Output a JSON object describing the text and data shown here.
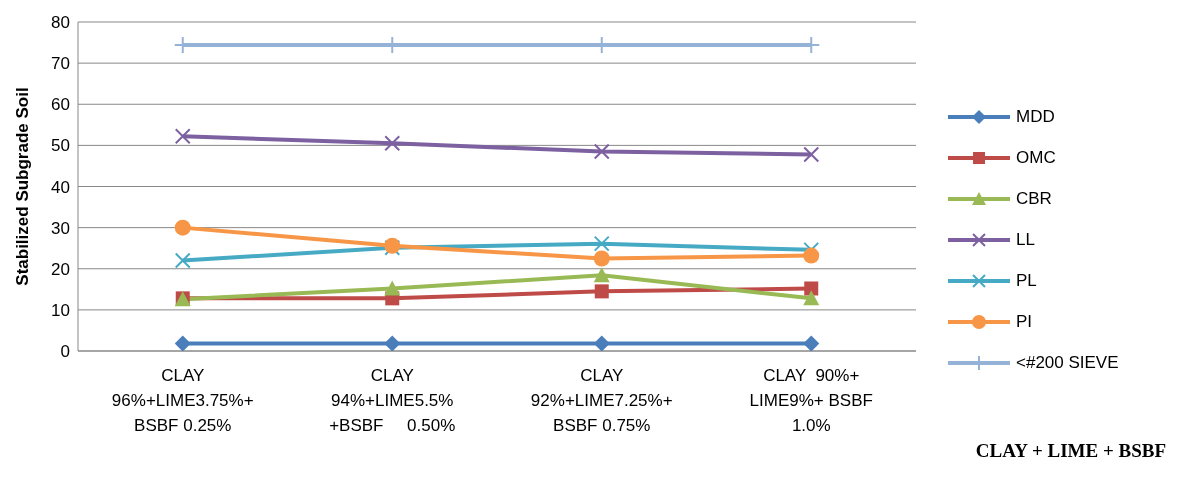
{
  "chart_data": {
    "type": "line",
    "ylabel": "Stabilized Subgrade  Soil",
    "xlabel": "CLAY + LIME + BSBF",
    "categories": [
      "CLAY\n96%+LIME3.75%+\nBSBF 0.25%",
      "CLAY\n94%+LIME5.5%\n+BSBF     0.50%",
      "CLAY\n92%+LIME7.25%+\nBSBF 0.75%",
      "CLAY  90%+\nLIME9%+ BSBF\n1.0%"
    ],
    "series": [
      {
        "name": "MDD",
        "color": "#4a7ebb",
        "marker": "diamond",
        "values": [
          1.8,
          1.8,
          1.8,
          1.8
        ]
      },
      {
        "name": "OMC",
        "color": "#be4b48",
        "marker": "square",
        "values": [
          12.8,
          12.8,
          14.5,
          15.2
        ]
      },
      {
        "name": "CBR",
        "color": "#98b954",
        "marker": "triangle",
        "values": [
          12.6,
          15.2,
          18.4,
          12.8
        ]
      },
      {
        "name": "LL",
        "color": "#7d60a0",
        "marker": "cross",
        "values": [
          52.2,
          50.5,
          48.5,
          47.8
        ]
      },
      {
        "name": "PL",
        "color": "#46aac5",
        "marker": "cross",
        "values": [
          22,
          25.1,
          26.1,
          24.6
        ]
      },
      {
        "name": "PI",
        "color": "#f79646",
        "marker": "circle",
        "values": [
          30,
          25.6,
          22.5,
          23.2
        ]
      },
      {
        "name": "<#200 SIEVE",
        "color": "#95b3d7",
        "marker": "plus",
        "values": [
          74.4,
          74.4,
          74.4,
          74.4
        ]
      }
    ],
    "ylim": [
      0,
      80
    ],
    "yticks": [
      0,
      10,
      20,
      30,
      40,
      50,
      60,
      70,
      80
    ],
    "grid": "y",
    "legend": "right",
    "line_style": "solid"
  }
}
